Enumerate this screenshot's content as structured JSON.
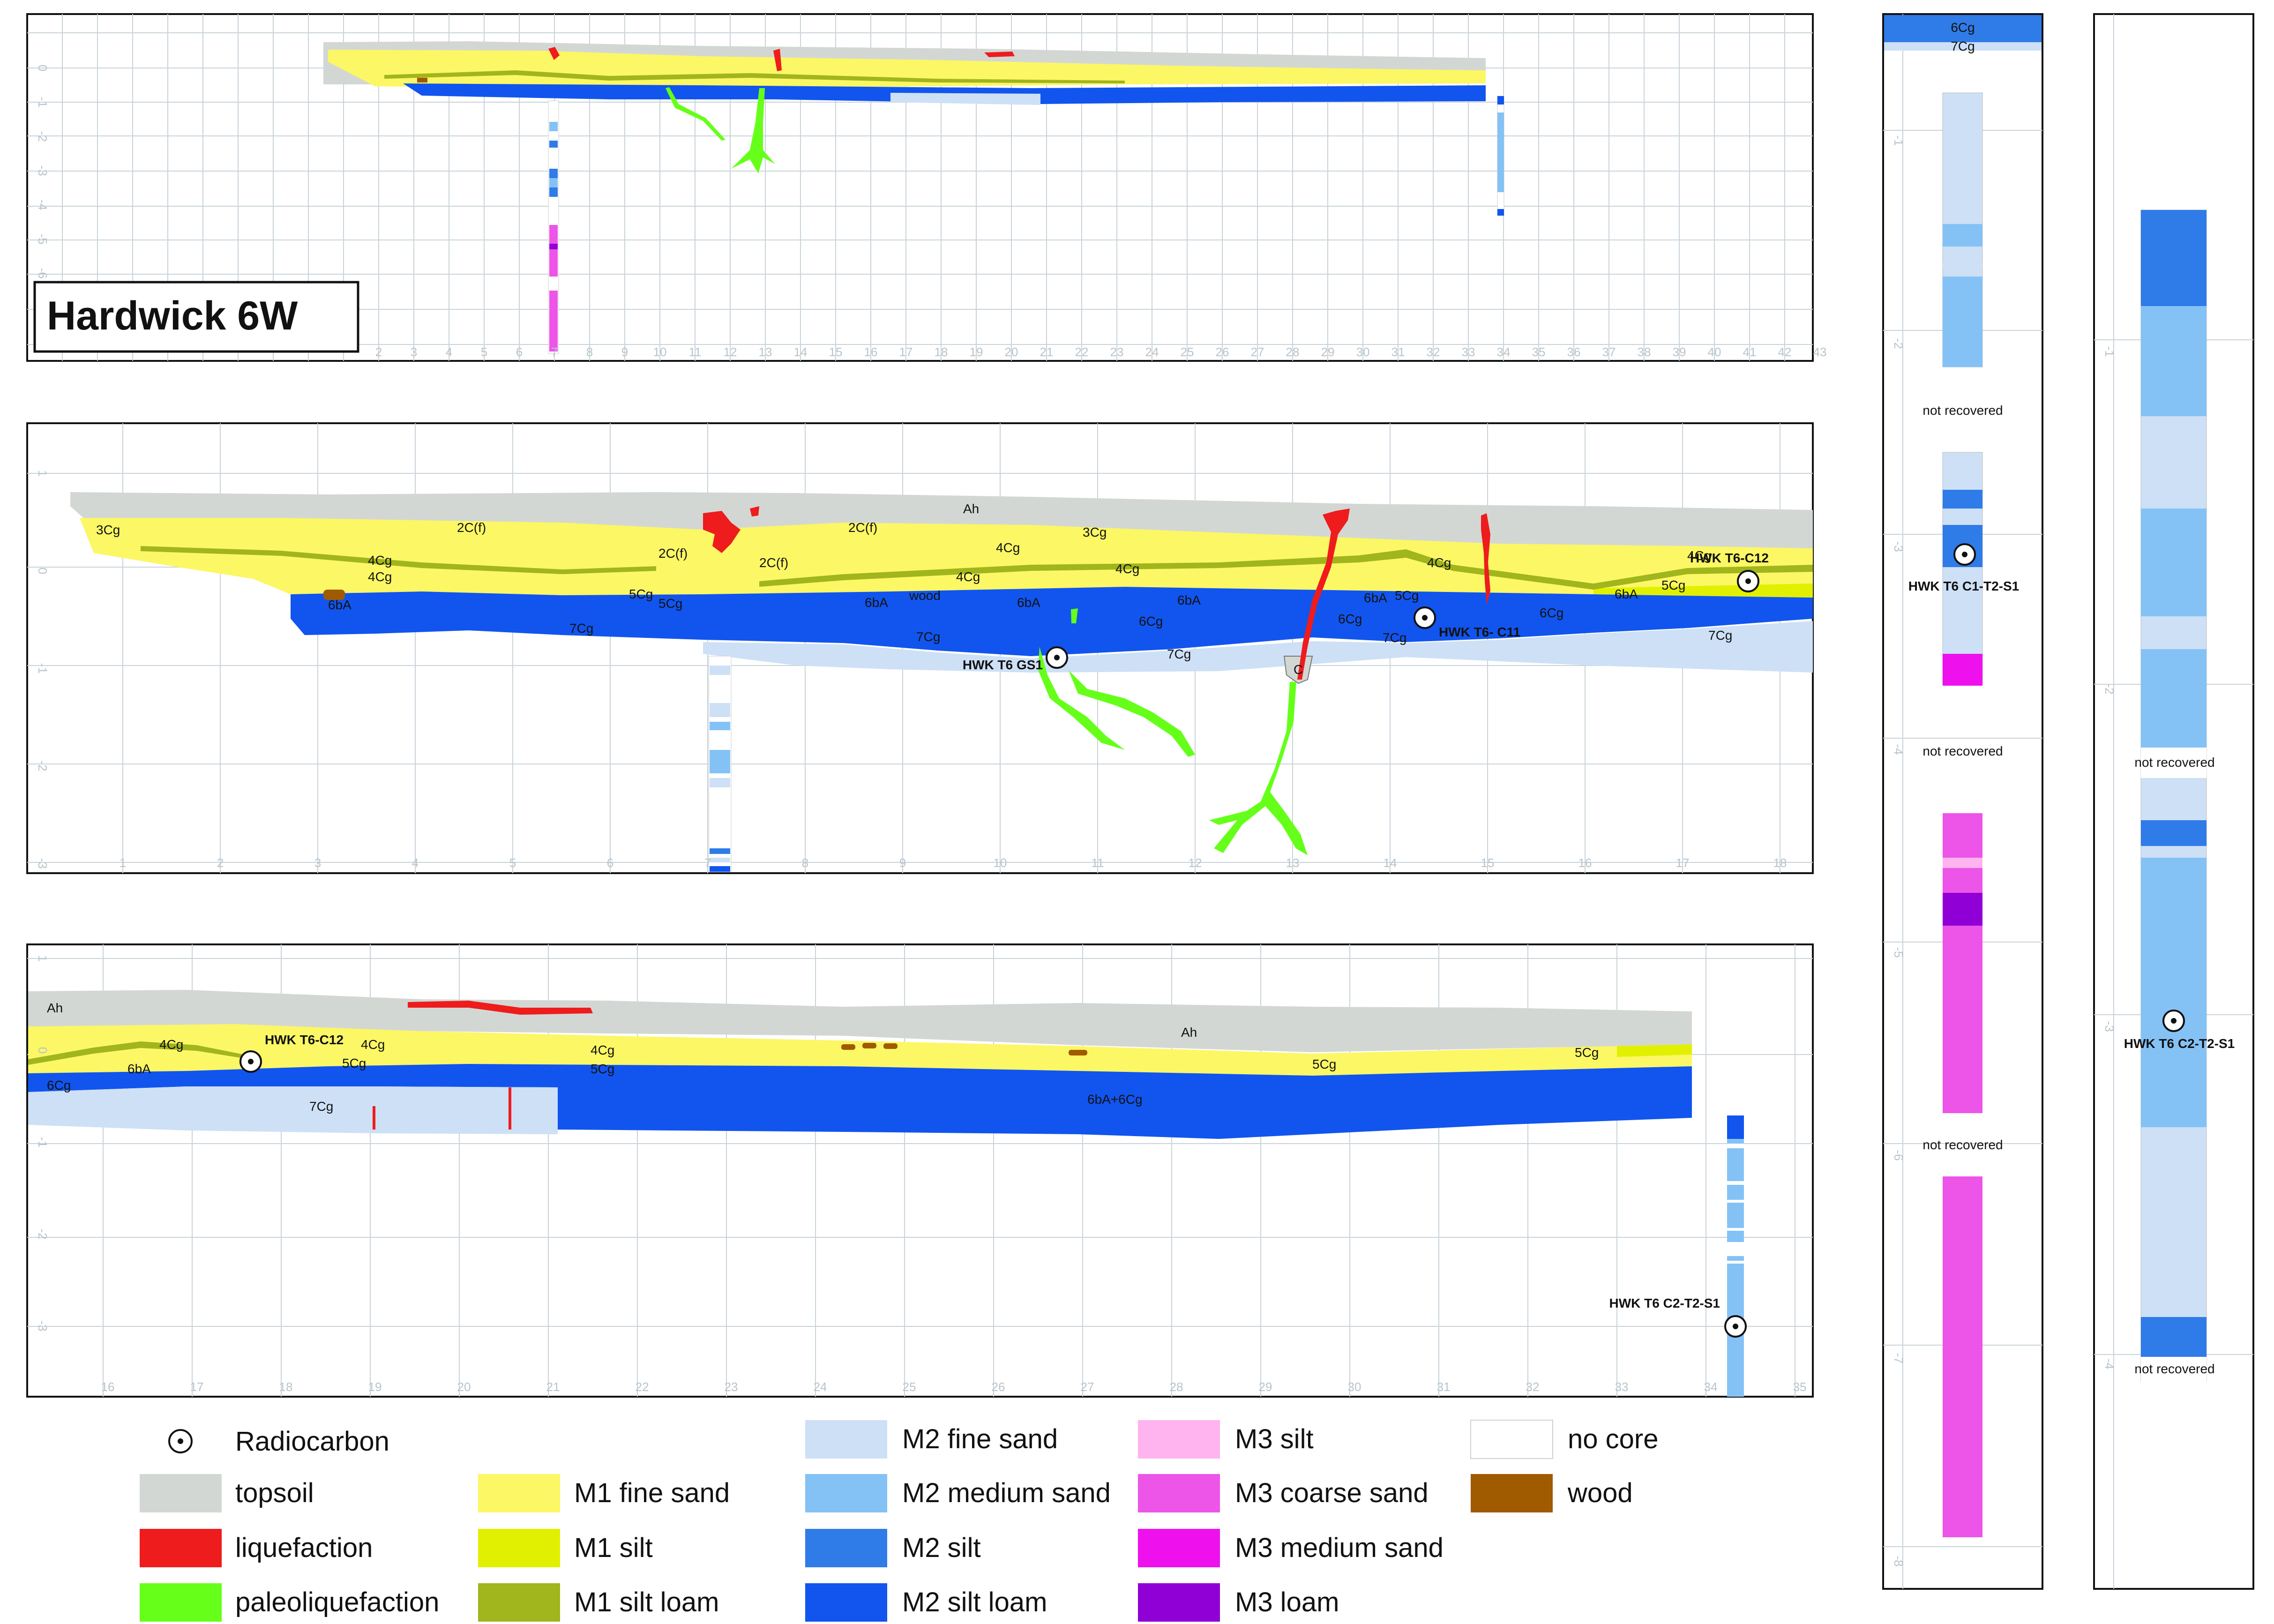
{
  "title": "Hardwick 6W",
  "colors": {
    "topsoil": "#d3d7d4",
    "liquefaction": "#ee1c1c",
    "paleoliquefaction": "#66ff1a",
    "m1_fine_sand": "#fcf764",
    "m1_silt": "#e1f000",
    "m1_silt_loam": "#a1b51c",
    "m2_fine_sand": "#cde0f6",
    "m2_medium_sand": "#84c2f6",
    "m2_silt": "#2f7be8",
    "m2_silt_loam": "#1155ee",
    "m3_silt": "#ffb3ef",
    "m3_coarse_sand": "#ec55e8",
    "m3_medium_sand": "#ee11ee",
    "m3_loam": "#9000d6",
    "no_core": "#ffffff",
    "wood": "#a05a00"
  },
  "panel1": {
    "y_ticks": [
      "0",
      "-1",
      "-2",
      "-3",
      "-4",
      "-5",
      "-6"
    ],
    "x_ticks": [
      "2",
      "3",
      "4",
      "5",
      "6",
      "7",
      "8",
      "9",
      "10",
      "11",
      "12",
      "13",
      "14",
      "15",
      "16",
      "17",
      "18",
      "19",
      "20",
      "21",
      "22",
      "23",
      "24",
      "25",
      "26",
      "27",
      "28",
      "29",
      "30",
      "31",
      "32",
      "33",
      "34",
      "35",
      "36",
      "37",
      "38",
      "39",
      "40",
      "41",
      "42",
      "43"
    ]
  },
  "panel2": {
    "y_ticks": [
      "1",
      "0",
      "-1",
      "-2",
      "-3"
    ],
    "x_ticks": [
      "1",
      "2",
      "3",
      "4",
      "5",
      "6",
      "7",
      "8",
      "9",
      "10",
      "11",
      "12",
      "13",
      "14",
      "15",
      "16",
      "17",
      "18"
    ],
    "unit_labels": {
      "u3Cg": "3Cg",
      "u2Cf_a": "2C(f)",
      "uAh": "Ah",
      "u2Cf_b": "2C(f)",
      "u3Cg_b": "3Cg",
      "u4Cg_a": "4Cg",
      "u4Cg_b": "4Cg",
      "u2Cf_c": "2C(f)",
      "u2Cf_d": "2C(f)",
      "u4Cg_c": "4Cg",
      "u4Cg_d": "4Cg",
      "u4Cg_e": "4Cg",
      "u4Cg_f": "4Cg",
      "u4Cg_g": "4Cg",
      "u6bA_a": "6bA",
      "u5Cg_a": "5Cg",
      "u5Cg_b": "5Cg",
      "u6bA_b": "6bA",
      "uwood": "wood",
      "u6bA_c": "6bA",
      "u6bA_d": "6bA",
      "u6bA_e": "6bA",
      "u5Cg_c": "5Cg",
      "u6bA_f": "6bA",
      "u5Cg_d": "5Cg",
      "u7Cg_a": "7Cg",
      "u7Cg_b": "7Cg",
      "u6Cg_a": "6Cg",
      "u7Cg_c": "7Cg",
      "u6Cg_b": "6Cg",
      "u7Cg_d": "7Cg",
      "u6Cg_c": "6Cg",
      "u7Cg_e": "7Cg",
      "uC": "C"
    },
    "samples": {
      "gs1": "HWK T6 GS1",
      "c11": "HWK T6- C11",
      "c12": "HWK T6-C12"
    }
  },
  "panel3": {
    "y_ticks": [
      "1",
      "0",
      "-1",
      "-2",
      "-3"
    ],
    "x_ticks": [
      "16",
      "17",
      "18",
      "19",
      "20",
      "21",
      "22",
      "23",
      "24",
      "25",
      "26",
      "27",
      "28",
      "29",
      "30",
      "31",
      "32",
      "33",
      "34",
      "35"
    ],
    "unit_labels": {
      "uAh_a": "Ah",
      "u4Cg_a": "4Cg",
      "u4Cg_b": "4Cg",
      "u6Cg": "6Cg",
      "u6bA": "6bA",
      "u5Cg_a": "5Cg",
      "u7Cg": "7Cg",
      "u4Cg_c": "4Cg",
      "u5Cg_b": "5Cg",
      "uAh_b": "Ah",
      "u6bA6Cg": "6bA+6Cg",
      "u5Cg_c": "5Cg",
      "u5Cg_d": "5Cg"
    },
    "samples": {
      "c12": "HWK T6-C12",
      "c2": "HWK T6 C2-T2-S1"
    }
  },
  "core1": {
    "top_labels": {
      "l6Cg": "6Cg",
      "l7Cg": "7Cg"
    },
    "y_ticks": [
      "-1",
      "-2",
      "-3",
      "-4",
      "-5",
      "-6",
      "-7",
      "-8"
    ],
    "not_recovered": [
      "not recovered",
      "not recovered",
      "not recovered"
    ],
    "sample": "HWK T6 C1-T2-S1"
  },
  "core2": {
    "y_ticks": [
      "-1",
      "-2",
      "-3",
      "-4"
    ],
    "not_recovered": [
      "not recovered",
      "not recovered"
    ],
    "sample": "HWK T6 C2-T2-S1"
  },
  "legend": {
    "radiocarbon": "Radiocarbon",
    "topsoil": "topsoil",
    "liquefaction": "liquefaction",
    "paleoliquefaction": "paleoliquefaction",
    "m1_fine_sand": "M1 fine sand",
    "m1_silt": "M1 silt",
    "m1_silt_loam": "M1 silt loam",
    "m2_fine_sand": "M2 fine sand",
    "m2_medium_sand": "M2 medium sand",
    "m2_silt": "M2 silt",
    "m2_silt_loam": "M2 silt loam",
    "m3_silt": "M3 silt",
    "m3_coarse_sand": "M3 coarse sand",
    "m3_medium_sand": "M3 medium sand",
    "m3_loam": "M3 loam",
    "no_core": "no core",
    "wood": "wood"
  }
}
